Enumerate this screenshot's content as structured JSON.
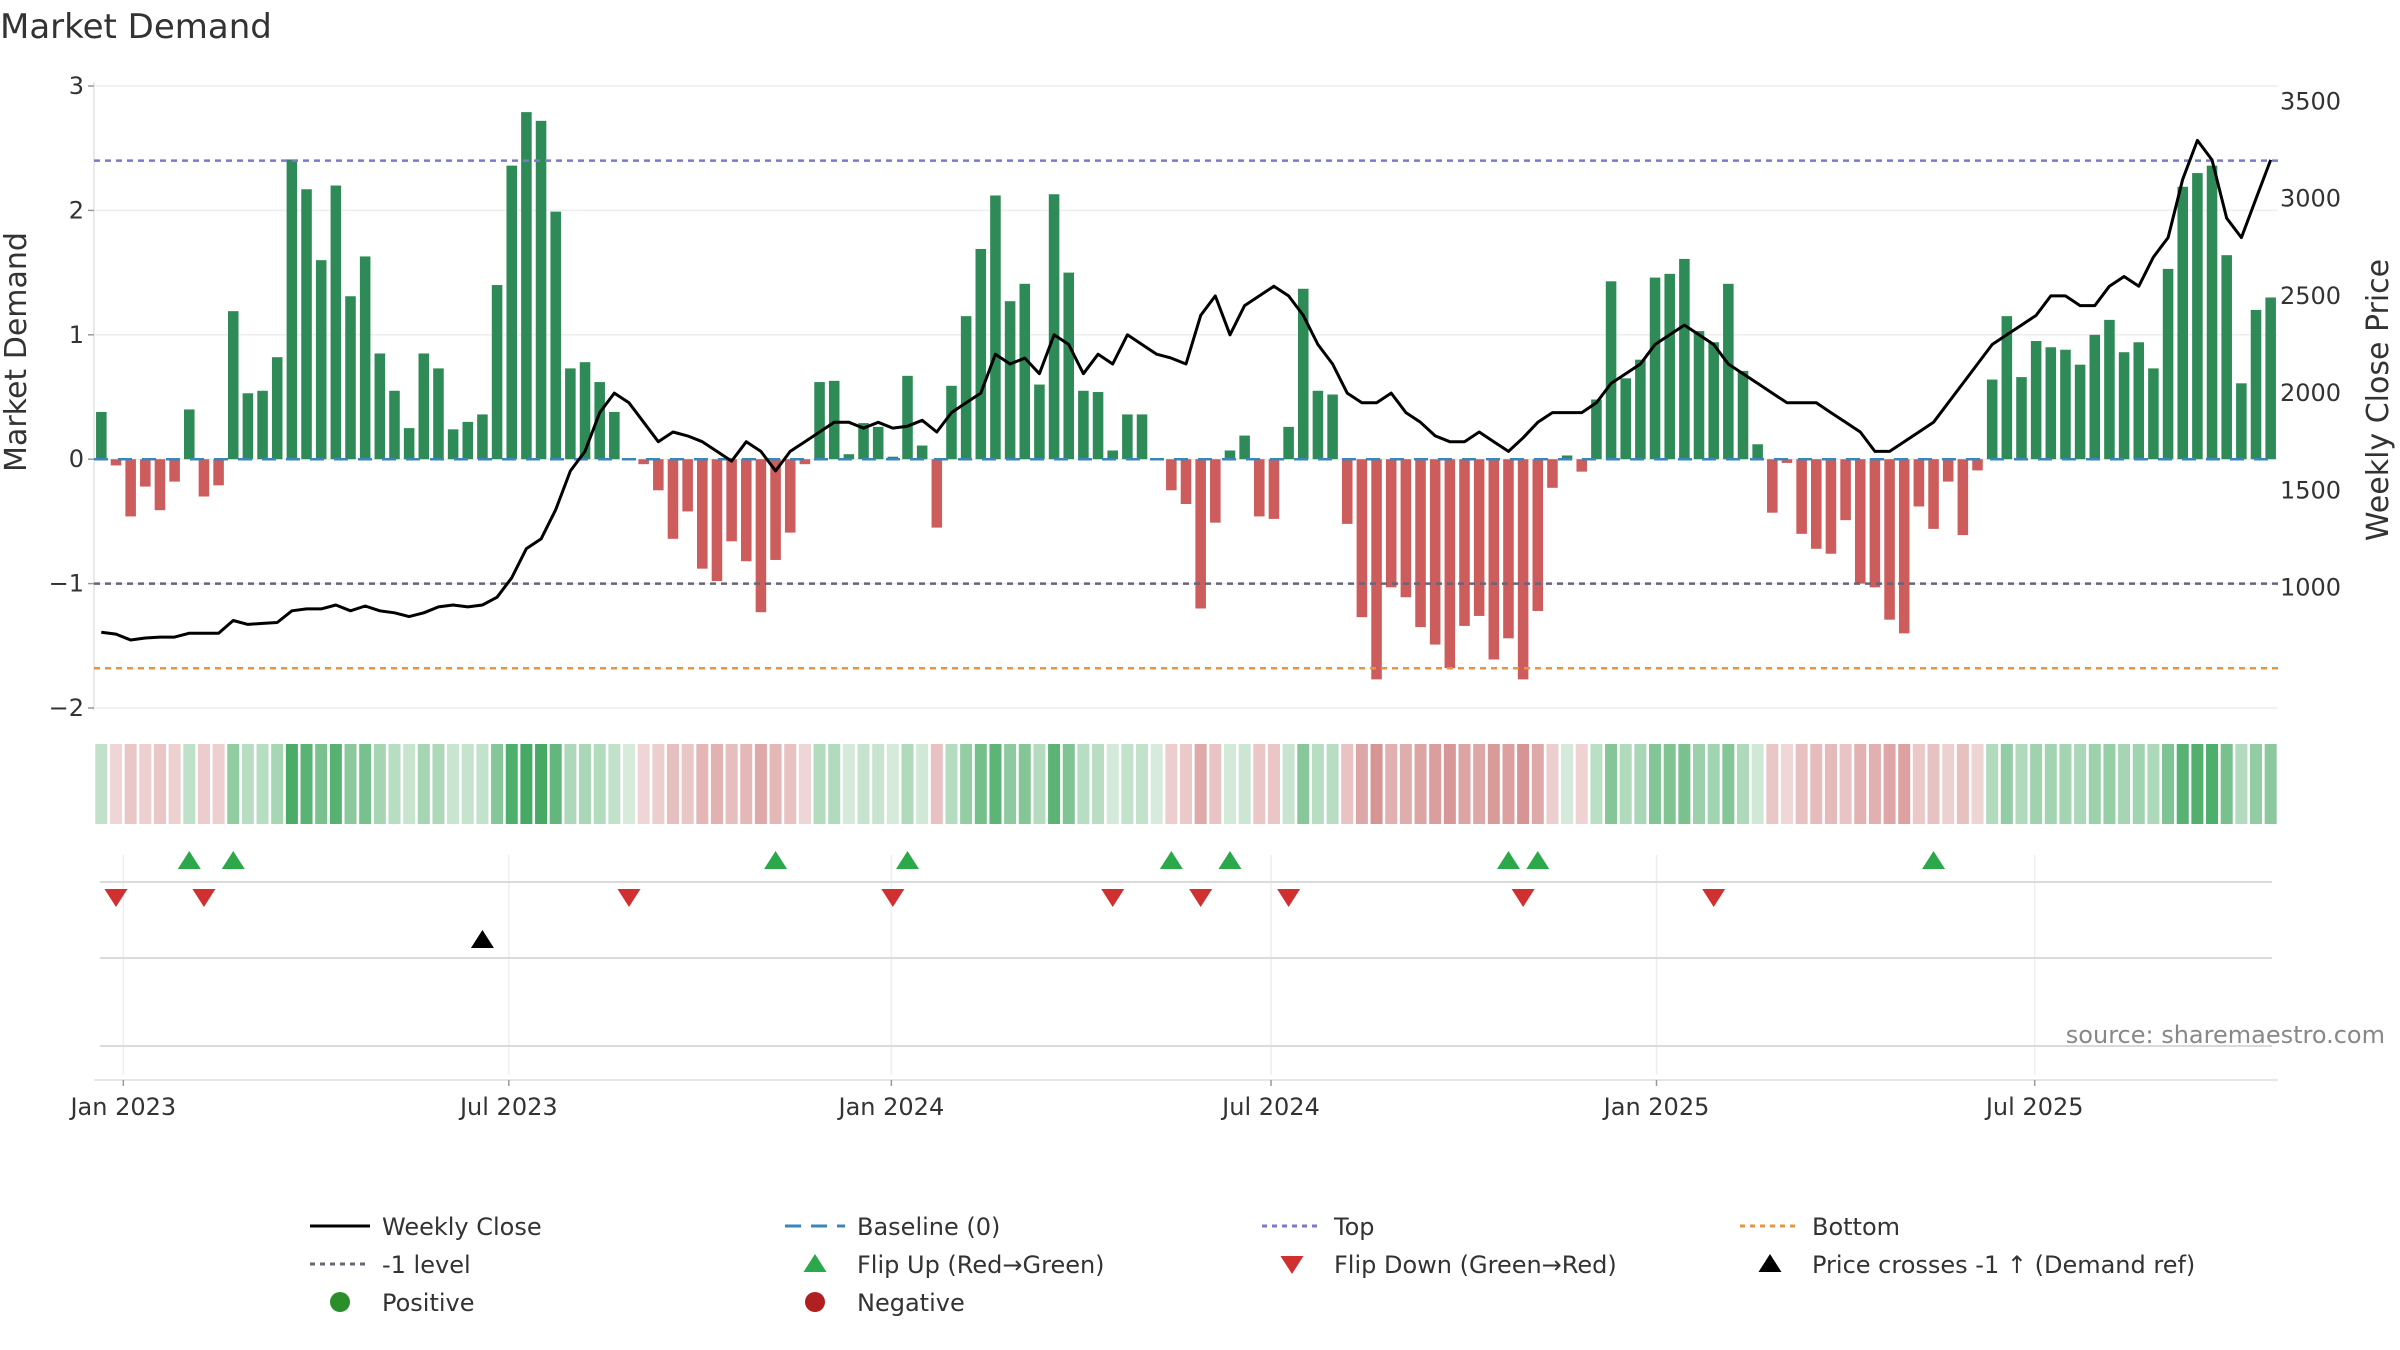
{
  "chart_data": {
    "type": "bar+line",
    "title": "Market Demand",
    "ylabel_left": "Market Demand",
    "ylabel_right": "Weekly Close Price",
    "ylim_left": [
      -2.0,
      3.0
    ],
    "ylim_right": [
      380,
      3580
    ],
    "left_ticks": [
      "3",
      "2",
      "1",
      "0",
      "−1",
      "−2"
    ],
    "left_tick_values": [
      3,
      2,
      1,
      0,
      -1,
      -2
    ],
    "right_ticks": [
      "3500",
      "3000",
      "2500",
      "2000",
      "1500",
      "1000"
    ],
    "right_tick_values": [
      3500,
      3000,
      2500,
      2000,
      1500,
      1000
    ],
    "x_start_label": "2022-12-19 (weekly)",
    "x_ticks": [
      "Jan 2023",
      "Jul 2023",
      "Jan 2024",
      "Jul 2024",
      "Jan 2025",
      "Jul 2025"
    ],
    "x_tick_weeks": [
      2,
      28.3,
      54.4,
      80.3,
      106.6,
      132.4
    ],
    "reference_lines": {
      "top": 2.4,
      "minus_one": -1.0,
      "bottom": -1.68,
      "baseline": 0
    },
    "demand": [
      0.38,
      -0.05,
      -0.46,
      -0.22,
      -0.41,
      -0.18,
      0.4,
      -0.3,
      -0.21,
      1.19,
      0.53,
      0.55,
      0.82,
      2.41,
      2.17,
      1.6,
      2.2,
      1.31,
      1.63,
      0.85,
      0.55,
      0.25,
      0.85,
      0.73,
      0.24,
      0.3,
      0.36,
      1.4,
      2.36,
      2.79,
      2.72,
      1.99,
      0.73,
      0.78,
      0.62,
      0.38,
      0,
      -0.04,
      -0.25,
      -0.64,
      -0.42,
      -0.88,
      -0.98,
      -0.66,
      -0.82,
      -1.23,
      -0.81,
      -0.59,
      -0.04,
      0.62,
      0.63,
      0.04,
      0.29,
      0.26,
      0.02,
      0.67,
      0.11,
      -0.55,
      0.59,
      1.15,
      1.69,
      2.12,
      1.27,
      1.41,
      0.6,
      2.13,
      1.5,
      0.55,
      0.54,
      0.07,
      0.36,
      0.36,
      0,
      -0.25,
      -0.36,
      -1.2,
      -0.51,
      0.07,
      0.19,
      -0.46,
      -0.48,
      0.26,
      1.37,
      0.55,
      0.52,
      -0.52,
      -1.27,
      -1.77,
      -1.03,
      -1.11,
      -1.35,
      -1.49,
      -1.68,
      -1.34,
      -1.26,
      -1.61,
      -1.44,
      -1.77,
      -1.22,
      -0.23,
      0.03,
      -0.1,
      0.48,
      1.43,
      0.65,
      0.8,
      1.46,
      1.49,
      1.61,
      1.03,
      0.94,
      1.41,
      0.71,
      0.12,
      -0.43,
      -0.03,
      -0.6,
      -0.72,
      -0.76,
      -0.49,
      -1.0,
      -1.03,
      -1.29,
      -1.4,
      -0.38,
      -0.56,
      -0.18,
      -0.61,
      -0.09,
      0.64,
      1.15,
      0.66,
      0.95,
      0.9,
      0.88,
      0.76,
      1.0,
      1.12,
      0.86,
      0.94,
      0.73,
      1.53,
      2.19,
      2.3,
      2.36,
      1.64,
      0.61,
      1.2,
      1.3
    ],
    "close": [
      770,
      760,
      730,
      740,
      745,
      745,
      765,
      765,
      765,
      830,
      810,
      815,
      820,
      880,
      890,
      890,
      910,
      880,
      905,
      880,
      870,
      850,
      870,
      900,
      910,
      900,
      910,
      950,
      1050,
      1200,
      1250,
      1400,
      1600,
      1700,
      1900,
      2000,
      1950,
      1850,
      1750,
      1800,
      1780,
      1750,
      1700,
      1650,
      1750,
      1700,
      1600,
      1700,
      1750,
      1800,
      1850,
      1850,
      1820,
      1850,
      1820,
      1830,
      1860,
      1800,
      1900,
      1950,
      2000,
      2200,
      2150,
      2180,
      2100,
      2300,
      2250,
      2100,
      2200,
      2150,
      2300,
      2250,
      2200,
      2180,
      2150,
      2400,
      2500,
      2300,
      2450,
      2500,
      2550,
      2500,
      2400,
      2250,
      2150,
      2000,
      1950,
      1950,
      2000,
      1900,
      1850,
      1780,
      1750,
      1750,
      1800,
      1750,
      1700,
      1770,
      1850,
      1900,
      1900,
      1900,
      1950,
      2050,
      2100,
      2150,
      2250,
      2300,
      2350,
      2300,
      2250,
      2150,
      2100,
      2050,
      2000,
      1950,
      1950,
      1950,
      1900,
      1850,
      1800,
      1700,
      1700,
      1750,
      1800,
      1850,
      1950,
      2050,
      2150,
      2250,
      2300,
      2350,
      2400,
      2500,
      2500,
      2450,
      2450,
      2550,
      2600,
      2550,
      2700,
      2800,
      3100,
      3300,
      3200,
      2900,
      2800,
      3000,
      3200
    ],
    "flip_up_weeks": [
      6,
      9,
      46,
      55,
      73,
      77,
      96,
      98,
      125
    ],
    "flip_down_weeks": [
      1,
      7,
      36,
      54,
      69,
      75,
      81,
      97,
      110
    ],
    "price_cross_weeks": [
      26
    ],
    "source": "source: sharemaestro.com"
  },
  "legend": [
    {
      "key": "weekly-close",
      "label": "Weekly Close",
      "style": "line",
      "color": "#000000"
    },
    {
      "key": "baseline",
      "label": "Baseline (0)",
      "style": "longdash",
      "color": "#3a86b8"
    },
    {
      "key": "top",
      "label": "Top",
      "style": "dot",
      "color": "#7a7acd"
    },
    {
      "key": "bottom",
      "label": "Bottom",
      "style": "dot",
      "color": "#e69540"
    },
    {
      "key": "minus-one",
      "label": "-1 level",
      "style": "dot",
      "color": "#666677"
    },
    {
      "key": "flip-up",
      "label": "Flip Up (Red→Green)",
      "style": "tri-up",
      "color": "#2aa84a"
    },
    {
      "key": "flip-down",
      "label": "Flip Down (Green→Red)",
      "style": "tri-down",
      "color": "#d03030"
    },
    {
      "key": "price-cross",
      "label": "Price crosses -1 ↑ (Demand ref)",
      "style": "tri-up",
      "color": "#000000"
    },
    {
      "key": "positive",
      "label": "Positive",
      "style": "circle",
      "color": "#2a8f2a"
    },
    {
      "key": "negative",
      "label": "Negative",
      "style": "circle",
      "color": "#b02020"
    }
  ],
  "colors": {
    "positive_bar": "#2e8b57",
    "negative_bar": "#cd5c5c",
    "close_line": "#000000"
  }
}
